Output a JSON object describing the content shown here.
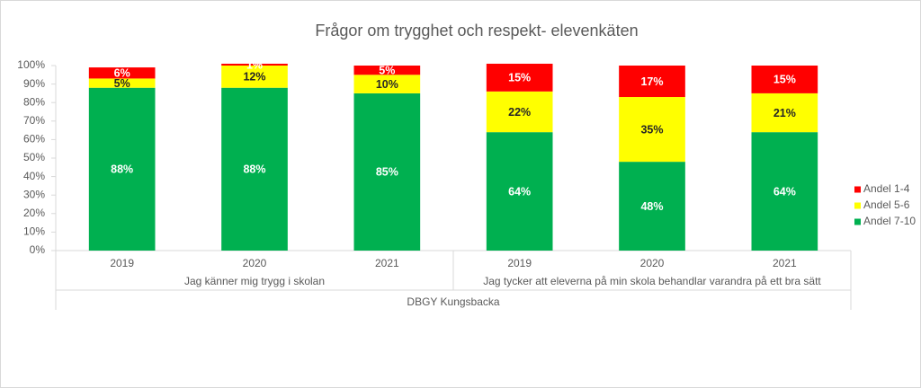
{
  "chart_data": {
    "type": "stacked_bar_100",
    "title": "Frågor om trygghet och respekt- elevenkäten",
    "categories": [
      "2019",
      "2020",
      "2021",
      "2019",
      "2020",
      "2021"
    ],
    "groups": [
      {
        "label": "Jag känner mig trygg i skolan",
        "size": 3
      },
      {
        "label": "Jag tycker att eleverna på min skola behandlar varandra på ett bra sätt",
        "size": 3
      }
    ],
    "super_group": "DBGY Kungsbacka",
    "series": [
      {
        "name": "Andel 7-10",
        "color": "#00b050",
        "label_color": "#ffffff",
        "values": [
          88,
          88,
          85,
          64,
          48,
          64
        ],
        "value_labels": [
          "88%",
          "88%",
          "85%",
          "64%",
          "48%",
          "64%"
        ]
      },
      {
        "name": "Andel 5-6",
        "color": "#ffff00",
        "label_color": "#262626",
        "values": [
          5,
          12,
          10,
          22,
          35,
          21
        ],
        "value_labels": [
          "5%",
          "12%",
          "10%",
          "22%",
          "35%",
          "21%"
        ]
      },
      {
        "name": "Andel 1-4",
        "color": "#ff0000",
        "label_color": "#ffffff",
        "values": [
          6,
          1,
          5,
          15,
          17,
          15
        ],
        "value_labels": [
          "6%",
          "1%",
          "5%",
          "15%",
          "17%",
          "15%"
        ]
      }
    ],
    "ylim": [
      0,
      100
    ],
    "yticks": [
      {
        "value": 0,
        "label": "0%"
      },
      {
        "value": 10,
        "label": "10%"
      },
      {
        "value": 20,
        "label": "20%"
      },
      {
        "value": 30,
        "label": "30%"
      },
      {
        "value": 40,
        "label": "40%"
      },
      {
        "value": 50,
        "label": "50%"
      },
      {
        "value": 60,
        "label": "60%"
      },
      {
        "value": 70,
        "label": "70%"
      },
      {
        "value": 80,
        "label": "80%"
      },
      {
        "value": 90,
        "label": "90%"
      },
      {
        "value": 100,
        "label": "100%"
      }
    ],
    "legend": "right"
  }
}
